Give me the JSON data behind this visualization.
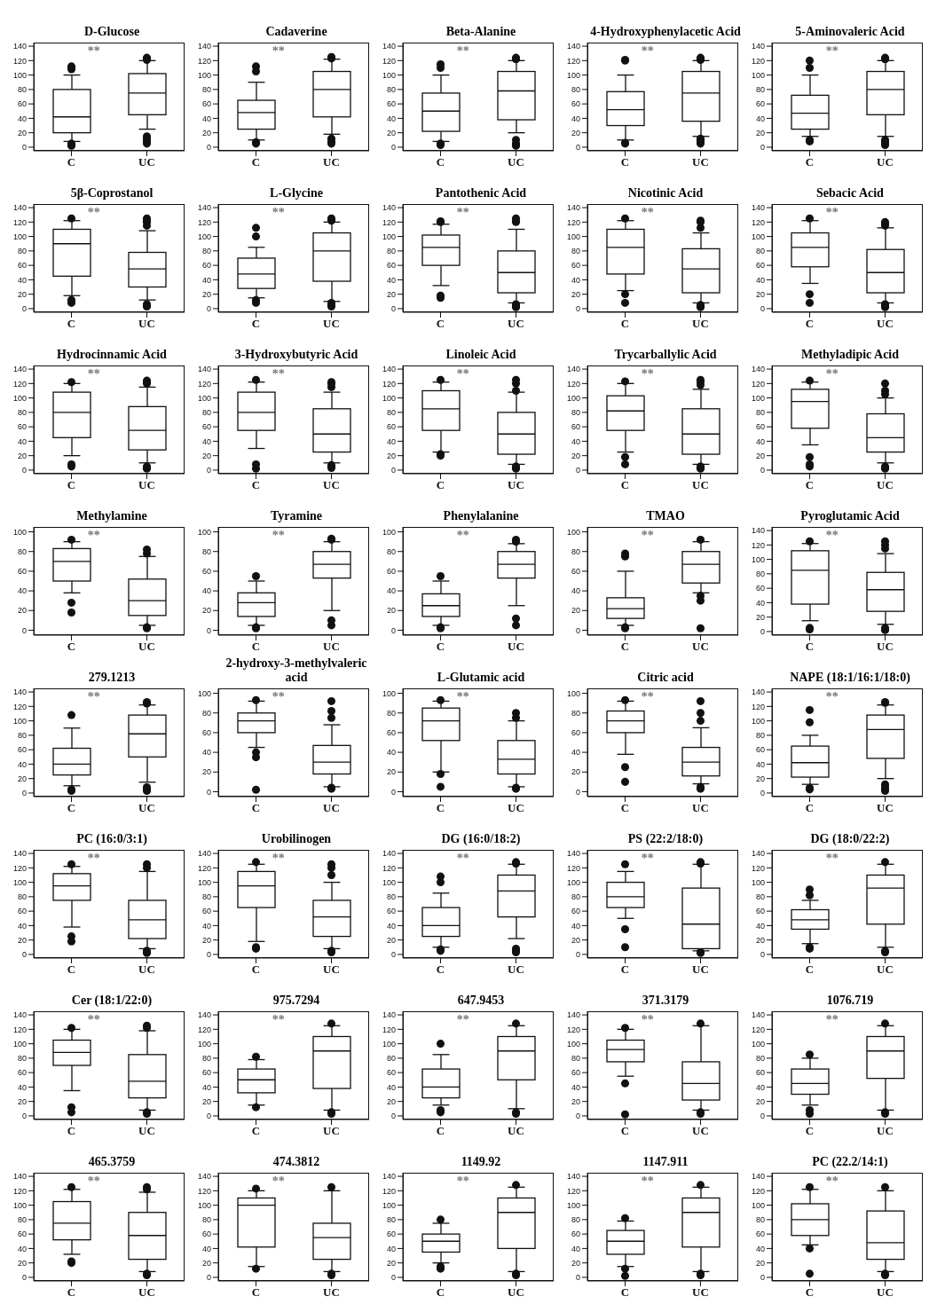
{
  "chart_data": [
    {
      "type": "box",
      "title": "D-Glucose",
      "categories": [
        "C",
        "UC"
      ],
      "ylim": [
        -5,
        145
      ],
      "yticks": [
        0,
        20,
        40,
        60,
        80,
        100,
        120,
        140
      ],
      "annotations": [
        "**"
      ],
      "boxes": [
        {
          "low": 8,
          "q1": 20,
          "median": 42,
          "q3": 80,
          "high": 100,
          "outliers": [
            108,
            110,
            112,
            2,
            3,
            5
          ]
        },
        {
          "low": 25,
          "q1": 45,
          "median": 75,
          "q3": 102,
          "high": 120,
          "outliers": [
            121,
            122,
            123,
            124,
            5,
            8,
            12,
            15
          ]
        }
      ]
    },
    {
      "type": "box",
      "title": "Cadaverine",
      "categories": [
        "C",
        "UC"
      ],
      "ylim": [
        -5,
        145
      ],
      "yticks": [
        0,
        20,
        40,
        60,
        80,
        100,
        120,
        140
      ],
      "annotations": [
        "**"
      ],
      "boxes": [
        {
          "low": 10,
          "q1": 25,
          "median": 48,
          "q3": 65,
          "high": 90,
          "outliers": [
            105,
            112,
            5,
            7
          ]
        },
        {
          "low": 18,
          "q1": 42,
          "median": 80,
          "q3": 105,
          "high": 122,
          "outliers": [
            123,
            124,
            125,
            5,
            8,
            12
          ]
        }
      ]
    },
    {
      "type": "box",
      "title": "Beta-Alanine",
      "categories": [
        "C",
        "UC"
      ],
      "ylim": [
        -5,
        145
      ],
      "yticks": [
        0,
        20,
        40,
        60,
        80,
        100,
        120,
        140
      ],
      "annotations": [
        "**"
      ],
      "boxes": [
        {
          "low": 8,
          "q1": 22,
          "median": 50,
          "q3": 75,
          "high": 100,
          "outliers": [
            110,
            115,
            3,
            5
          ]
        },
        {
          "low": 20,
          "q1": 38,
          "median": 78,
          "q3": 105,
          "high": 120,
          "outliers": [
            122,
            123,
            124,
            2,
            3,
            5,
            10
          ]
        }
      ]
    },
    {
      "type": "box",
      "title": "4-Hydroxyphenylacetic Acid",
      "categories": [
        "C",
        "UC"
      ],
      "ylim": [
        -5,
        145
      ],
      "yticks": [
        0,
        20,
        40,
        60,
        80,
        100,
        120,
        140
      ],
      "annotations": [
        "**"
      ],
      "boxes": [
        {
          "low": 10,
          "q1": 30,
          "median": 52,
          "q3": 77,
          "high": 100,
          "outliers": [
            120,
            121,
            5,
            6
          ]
        },
        {
          "low": 15,
          "q1": 36,
          "median": 75,
          "q3": 105,
          "high": 120,
          "outliers": [
            121,
            122,
            124,
            5,
            8,
            10,
            12
          ]
        }
      ]
    },
    {
      "type": "box",
      "title": "5-Aminovaleric Acid",
      "categories": [
        "C",
        "UC"
      ],
      "ylim": [
        -5,
        145
      ],
      "yticks": [
        0,
        20,
        40,
        60,
        80,
        100,
        120,
        140
      ],
      "annotations": [
        "**"
      ],
      "boxes": [
        {
          "low": 15,
          "q1": 25,
          "median": 47,
          "q3": 72,
          "high": 100,
          "outliers": [
            110,
            120,
            8,
            10
          ]
        },
        {
          "low": 15,
          "q1": 45,
          "median": 80,
          "q3": 105,
          "high": 120,
          "outliers": [
            122,
            123,
            124,
            3,
            5,
            8,
            10
          ]
        }
      ]
    },
    {
      "type": "box",
      "title": "5β-Coprostanol",
      "categories": [
        "C",
        "UC"
      ],
      "ylim": [
        -5,
        145
      ],
      "yticks": [
        0,
        20,
        40,
        60,
        80,
        100,
        120,
        140
      ],
      "annotations": [
        "**"
      ],
      "boxes": [
        {
          "low": 18,
          "q1": 45,
          "median": 90,
          "q3": 110,
          "high": 122,
          "outliers": [
            125,
            8,
            12
          ]
        },
        {
          "low": 12,
          "q1": 30,
          "median": 55,
          "q3": 78,
          "high": 108,
          "outliers": [
            115,
            120,
            122,
            125,
            3,
            4,
            5,
            6
          ]
        }
      ]
    },
    {
      "type": "box",
      "title": "L-Glycine",
      "categories": [
        "C",
        "UC"
      ],
      "ylim": [
        -5,
        145
      ],
      "yticks": [
        0,
        20,
        40,
        60,
        80,
        100,
        120,
        140
      ],
      "annotations": [
        "**"
      ],
      "boxes": [
        {
          "low": 15,
          "q1": 28,
          "median": 48,
          "q3": 70,
          "high": 85,
          "outliers": [
            100,
            112,
            8,
            12
          ]
        },
        {
          "low": 10,
          "q1": 38,
          "median": 80,
          "q3": 105,
          "high": 120,
          "outliers": [
            122,
            123,
            125,
            3,
            5,
            8
          ]
        }
      ]
    },
    {
      "type": "box",
      "title": "Pantothenic Acid",
      "categories": [
        "C",
        "UC"
      ],
      "ylim": [
        -5,
        145
      ],
      "yticks": [
        0,
        20,
        40,
        60,
        80,
        100,
        120,
        140
      ],
      "annotations": [
        "**"
      ],
      "boxes": [
        {
          "low": 32,
          "q1": 60,
          "median": 85,
          "q3": 102,
          "high": 117,
          "outliers": [
            120,
            121,
            15,
            18
          ]
        },
        {
          "low": 8,
          "q1": 22,
          "median": 50,
          "q3": 80,
          "high": 110,
          "outliers": [
            120,
            122,
            125,
            2,
            3,
            5,
            6
          ]
        }
      ]
    },
    {
      "type": "box",
      "title": "Nicotinic Acid",
      "categories": [
        "C",
        "UC"
      ],
      "ylim": [
        -5,
        145
      ],
      "yticks": [
        0,
        20,
        40,
        60,
        80,
        100,
        120,
        140
      ],
      "annotations": [
        "**"
      ],
      "boxes": [
        {
          "low": 25,
          "q1": 48,
          "median": 85,
          "q3": 110,
          "high": 122,
          "outliers": [
            125,
            8,
            20
          ]
        },
        {
          "low": 8,
          "q1": 22,
          "median": 55,
          "q3": 83,
          "high": 105,
          "outliers": [
            112,
            120,
            122,
            2,
            3,
            5
          ]
        }
      ]
    },
    {
      "type": "box",
      "title": "Sebacic Acid",
      "categories": [
        "C",
        "UC"
      ],
      "ylim": [
        -5,
        145
      ],
      "yticks": [
        0,
        20,
        40,
        60,
        80,
        100,
        120,
        140
      ],
      "annotations": [
        "**"
      ],
      "boxes": [
        {
          "low": 35,
          "q1": 58,
          "median": 85,
          "q3": 105,
          "high": 122,
          "outliers": [
            125,
            8,
            20
          ]
        },
        {
          "low": 8,
          "q1": 22,
          "median": 50,
          "q3": 82,
          "high": 112,
          "outliers": [
            115,
            118,
            120,
            2,
            3,
            5,
            6
          ]
        }
      ]
    },
    {
      "type": "box",
      "title": "Hydrocinnamic Acid",
      "categories": [
        "C",
        "UC"
      ],
      "ylim": [
        -5,
        145
      ],
      "yticks": [
        0,
        20,
        40,
        60,
        80,
        100,
        120,
        140
      ],
      "annotations": [
        "**"
      ],
      "boxes": [
        {
          "low": 20,
          "q1": 45,
          "median": 80,
          "q3": 108,
          "high": 120,
          "outliers": [
            122,
            5,
            8
          ]
        },
        {
          "low": 10,
          "q1": 28,
          "median": 55,
          "q3": 88,
          "high": 115,
          "outliers": [
            120,
            122,
            124,
            2,
            3,
            4,
            5
          ]
        }
      ]
    },
    {
      "type": "box",
      "title": "3-Hydroxybutyric Acid",
      "categories": [
        "C",
        "UC"
      ],
      "ylim": [
        -5,
        145
      ],
      "yticks": [
        0,
        20,
        40,
        60,
        80,
        100,
        120,
        140
      ],
      "annotations": [
        "**"
      ],
      "boxes": [
        {
          "low": 30,
          "q1": 55,
          "median": 80,
          "q3": 108,
          "high": 122,
          "outliers": [
            125,
            2,
            8
          ]
        },
        {
          "low": 10,
          "q1": 25,
          "median": 50,
          "q3": 85,
          "high": 108,
          "outliers": [
            115,
            120,
            122,
            3,
            5,
            7
          ]
        }
      ]
    },
    {
      "type": "box",
      "title": "Linoleic Acid",
      "categories": [
        "C",
        "UC"
      ],
      "ylim": [
        -5,
        145
      ],
      "yticks": [
        0,
        20,
        40,
        60,
        80,
        100,
        120,
        140
      ],
      "annotations": [
        "**"
      ],
      "boxes": [
        {
          "low": 25,
          "q1": 55,
          "median": 85,
          "q3": 110,
          "high": 122,
          "outliers": [
            125,
            20,
            22
          ]
        },
        {
          "low": 8,
          "q1": 22,
          "median": 50,
          "q3": 80,
          "high": 108,
          "outliers": [
            110,
            120,
            125,
            2,
            3,
            5
          ]
        }
      ]
    },
    {
      "type": "box",
      "title": "Trycarballylic Acid",
      "categories": [
        "C",
        "UC"
      ],
      "ylim": [
        -5,
        145
      ],
      "yticks": [
        0,
        20,
        40,
        60,
        80,
        100,
        120,
        140
      ],
      "annotations": [
        "**"
      ],
      "boxes": [
        {
          "low": 25,
          "q1": 55,
          "median": 82,
          "q3": 103,
          "high": 120,
          "outliers": [
            123,
            8,
            18
          ]
        },
        {
          "low": 8,
          "q1": 22,
          "median": 50,
          "q3": 85,
          "high": 112,
          "outliers": [
            118,
            122,
            125,
            2,
            3,
            5
          ]
        }
      ]
    },
    {
      "type": "box",
      "title": "Methyladipic Acid",
      "categories": [
        "C",
        "UC"
      ],
      "ylim": [
        -5,
        145
      ],
      "yticks": [
        0,
        20,
        40,
        60,
        80,
        100,
        120,
        140
      ],
      "annotations": [
        "**"
      ],
      "boxes": [
        {
          "low": 35,
          "q1": 58,
          "median": 95,
          "q3": 112,
          "high": 122,
          "outliers": [
            124,
            5,
            8,
            18
          ]
        },
        {
          "low": 10,
          "q1": 25,
          "median": 45,
          "q3": 78,
          "high": 100,
          "outliers": [
            105,
            110,
            120,
            2,
            3,
            5
          ]
        }
      ]
    },
    {
      "type": "box",
      "title": "Methylamine",
      "categories": [
        "C",
        "UC"
      ],
      "ylim": [
        -5,
        105
      ],
      "yticks": [
        0,
        20,
        40,
        60,
        80,
        100
      ],
      "annotations": [
        "**"
      ],
      "boxes": [
        {
          "low": 38,
          "q1": 50,
          "median": 70,
          "q3": 83,
          "high": 90,
          "outliers": [
            92,
            18,
            28
          ]
        },
        {
          "low": 5,
          "q1": 15,
          "median": 30,
          "q3": 52,
          "high": 75,
          "outliers": [
            78,
            82,
            2,
            3
          ]
        }
      ]
    },
    {
      "type": "box",
      "title": "Tyramine",
      "categories": [
        "C",
        "UC"
      ],
      "ylim": [
        -5,
        105
      ],
      "yticks": [
        0,
        20,
        40,
        60,
        80,
        100
      ],
      "annotations": [
        "**"
      ],
      "boxes": [
        {
          "low": 5,
          "q1": 14,
          "median": 28,
          "q3": 38,
          "high": 50,
          "outliers": [
            55,
            2,
            3
          ]
        },
        {
          "low": 20,
          "q1": 53,
          "median": 67,
          "q3": 80,
          "high": 90,
          "outliers": [
            92,
            93,
            5,
            10
          ]
        }
      ]
    },
    {
      "type": "box",
      "title": "Phenylalanine",
      "categories": [
        "C",
        "UC"
      ],
      "ylim": [
        -5,
        105
      ],
      "yticks": [
        0,
        20,
        40,
        60,
        80,
        100
      ],
      "annotations": [
        "**"
      ],
      "boxes": [
        {
          "low": 5,
          "q1": 14,
          "median": 25,
          "q3": 37,
          "high": 50,
          "outliers": [
            55,
            2,
            3
          ]
        },
        {
          "low": 25,
          "q1": 53,
          "median": 67,
          "q3": 80,
          "high": 88,
          "outliers": [
            90,
            92,
            5,
            12
          ]
        }
      ]
    },
    {
      "type": "box",
      "title": "TMAO",
      "categories": [
        "C",
        "UC"
      ],
      "ylim": [
        -5,
        105
      ],
      "yticks": [
        0,
        20,
        40,
        60,
        80,
        100
      ],
      "annotations": [
        "**"
      ],
      "boxes": [
        {
          "low": 5,
          "q1": 12,
          "median": 22,
          "q3": 33,
          "high": 60,
          "outliers": [
            75,
            78,
            2,
            3
          ]
        },
        {
          "low": 38,
          "q1": 48,
          "median": 67,
          "q3": 80,
          "high": 90,
          "outliers": [
            92,
            2,
            30,
            35
          ]
        }
      ]
    },
    {
      "type": "box",
      "title": "Pyroglutamic Acid",
      "categories": [
        "C",
        "UC"
      ],
      "ylim": [
        -5,
        145
      ],
      "yticks": [
        0,
        20,
        40,
        60,
        80,
        100,
        120,
        140
      ],
      "annotations": [
        "**"
      ],
      "boxes": [
        {
          "low": 15,
          "q1": 38,
          "median": 85,
          "q3": 112,
          "high": 122,
          "outliers": [
            125,
            3,
            5
          ]
        },
        {
          "low": 10,
          "q1": 28,
          "median": 58,
          "q3": 82,
          "high": 108,
          "outliers": [
            115,
            120,
            125,
            2,
            3,
            5
          ]
        }
      ]
    },
    {
      "type": "box",
      "title": "279.1213",
      "categories": [
        "C",
        "UC"
      ],
      "ylim": [
        -5,
        145
      ],
      "yticks": [
        0,
        20,
        40,
        60,
        80,
        100,
        120,
        140
      ],
      "annotations": [
        "**"
      ],
      "boxes": [
        {
          "low": 10,
          "q1": 25,
          "median": 40,
          "q3": 62,
          "high": 90,
          "outliers": [
            108,
            3,
            5
          ]
        },
        {
          "low": 15,
          "q1": 50,
          "median": 82,
          "q3": 108,
          "high": 122,
          "outliers": [
            124,
            125,
            126,
            3,
            5,
            8
          ]
        }
      ]
    },
    {
      "type": "box",
      "title": "2-hydroxy-3-methylvaleric acid",
      "categories": [
        "C",
        "UC"
      ],
      "ylim": [
        -5,
        105
      ],
      "yticks": [
        0,
        20,
        40,
        60,
        80,
        100
      ],
      "annotations": [
        "**"
      ],
      "boxes": [
        {
          "low": 45,
          "q1": 60,
          "median": 72,
          "q3": 80,
          "high": 92,
          "outliers": [
            93,
            2,
            35,
            40
          ]
        },
        {
          "low": 5,
          "q1": 18,
          "median": 30,
          "q3": 47,
          "high": 68,
          "outliers": [
            75,
            82,
            92,
            3,
            4
          ]
        }
      ]
    },
    {
      "type": "box",
      "title": "L-Glutamic acid",
      "categories": [
        "C",
        "UC"
      ],
      "ylim": [
        -5,
        105
      ],
      "yticks": [
        0,
        20,
        40,
        60,
        80,
        100
      ],
      "annotations": [
        "**"
      ],
      "boxes": [
        {
          "low": 20,
          "q1": 52,
          "median": 72,
          "q3": 85,
          "high": 92,
          "outliers": [
            93,
            5,
            18
          ]
        },
        {
          "low": 5,
          "q1": 18,
          "median": 33,
          "q3": 52,
          "high": 72,
          "outliers": [
            75,
            80,
            3,
            4
          ]
        }
      ]
    },
    {
      "type": "box",
      "title": "Citric acid",
      "categories": [
        "C",
        "UC"
      ],
      "ylim": [
        -5,
        105
      ],
      "yticks": [
        0,
        20,
        40,
        60,
        80,
        100
      ],
      "annotations": [
        "**"
      ],
      "boxes": [
        {
          "low": 38,
          "q1": 60,
          "median": 72,
          "q3": 82,
          "high": 92,
          "outliers": [
            93,
            10,
            25
          ]
        },
        {
          "low": 8,
          "q1": 16,
          "median": 30,
          "q3": 45,
          "high": 65,
          "outliers": [
            72,
            80,
            92,
            3,
            5
          ]
        }
      ]
    },
    {
      "type": "box",
      "title": "NAPE (18:1/16:1/18:0)",
      "categories": [
        "C",
        "UC"
      ],
      "ylim": [
        -5,
        145
      ],
      "yticks": [
        0,
        20,
        40,
        60,
        80,
        100,
        120,
        140
      ],
      "annotations": [
        "**"
      ],
      "boxes": [
        {
          "low": 12,
          "q1": 22,
          "median": 42,
          "q3": 65,
          "high": 80,
          "outliers": [
            98,
            115,
            5,
            7
          ]
        },
        {
          "low": 20,
          "q1": 48,
          "median": 88,
          "q3": 108,
          "high": 122,
          "outliers": [
            125,
            126,
            3,
            5,
            8,
            12
          ]
        }
      ]
    },
    {
      "type": "box",
      "title": "PC (16:0/3:1)",
      "categories": [
        "C",
        "UC"
      ],
      "ylim": [
        -5,
        145
      ],
      "yticks": [
        0,
        20,
        40,
        60,
        80,
        100,
        120,
        140
      ],
      "annotations": [
        "**"
      ],
      "boxes": [
        {
          "low": 38,
          "q1": 75,
          "median": 95,
          "q3": 112,
          "high": 122,
          "outliers": [
            125,
            18,
            25
          ]
        },
        {
          "low": 8,
          "q1": 22,
          "median": 48,
          "q3": 75,
          "high": 115,
          "outliers": [
            120,
            125,
            2,
            3,
            5
          ]
        }
      ]
    },
    {
      "type": "box",
      "title": "Urobilinogen",
      "categories": [
        "C",
        "UC"
      ],
      "ylim": [
        -5,
        145
      ],
      "yticks": [
        0,
        20,
        40,
        60,
        80,
        100,
        120,
        140
      ],
      "annotations": [
        "**"
      ],
      "boxes": [
        {
          "low": 18,
          "q1": 65,
          "median": 95,
          "q3": 115,
          "high": 125,
          "outliers": [
            128,
            8,
            10
          ]
        },
        {
          "low": 8,
          "q1": 25,
          "median": 52,
          "q3": 75,
          "high": 100,
          "outliers": [
            110,
            120,
            125,
            3,
            5
          ]
        }
      ]
    },
    {
      "type": "box",
      "title": "DG (16:0/18:2)",
      "categories": [
        "C",
        "UC"
      ],
      "ylim": [
        -5,
        145
      ],
      "yticks": [
        0,
        20,
        40,
        60,
        80,
        100,
        120,
        140
      ],
      "annotations": [
        "**"
      ],
      "boxes": [
        {
          "low": 10,
          "q1": 25,
          "median": 40,
          "q3": 65,
          "high": 85,
          "outliers": [
            100,
            108,
            5,
            7
          ]
        },
        {
          "low": 22,
          "q1": 52,
          "median": 88,
          "q3": 110,
          "high": 125,
          "outliers": [
            126,
            128,
            3,
            5,
            8
          ]
        }
      ]
    },
    {
      "type": "box",
      "title": "PS (22:2/18:0)",
      "categories": [
        "C",
        "UC"
      ],
      "ylim": [
        -5,
        145
      ],
      "yticks": [
        0,
        20,
        40,
        60,
        80,
        100,
        120,
        140
      ],
      "annotations": [
        "**"
      ],
      "boxes": [
        {
          "low": 50,
          "q1": 65,
          "median": 80,
          "q3": 100,
          "high": 115,
          "outliers": [
            125,
            10,
            35
          ]
        },
        {
          "low": 5,
          "q1": 8,
          "median": 42,
          "q3": 92,
          "high": 125,
          "outliers": [
            126,
            128,
            2,
            3
          ]
        }
      ]
    },
    {
      "type": "box",
      "title": "DG (18:0/22:2)",
      "categories": [
        "C",
        "UC"
      ],
      "ylim": [
        -5,
        145
      ],
      "yticks": [
        0,
        20,
        40,
        60,
        80,
        100,
        120,
        140
      ],
      "annotations": [
        "**"
      ],
      "boxes": [
        {
          "low": 15,
          "q1": 35,
          "median": 48,
          "q3": 62,
          "high": 75,
          "outliers": [
            82,
            90,
            8,
            10
          ]
        },
        {
          "low": 10,
          "q1": 42,
          "median": 92,
          "q3": 110,
          "high": 125,
          "outliers": [
            128,
            3,
            5
          ]
        }
      ]
    },
    {
      "type": "box",
      "title": "Cer (18:1/22:0)",
      "categories": [
        "C",
        "UC"
      ],
      "ylim": [
        -5,
        145
      ],
      "yticks": [
        0,
        20,
        40,
        60,
        80,
        100,
        120,
        140
      ],
      "annotations": [
        "**"
      ],
      "boxes": [
        {
          "low": 35,
          "q1": 70,
          "median": 88,
          "q3": 105,
          "high": 120,
          "outliers": [
            122,
            5,
            12
          ]
        },
        {
          "low": 8,
          "q1": 25,
          "median": 48,
          "q3": 85,
          "high": 118,
          "outliers": [
            122,
            125,
            3,
            5
          ]
        }
      ]
    },
    {
      "type": "box",
      "title": "975.7294",
      "categories": [
        "C",
        "UC"
      ],
      "ylim": [
        -5,
        145
      ],
      "yticks": [
        0,
        20,
        40,
        60,
        80,
        100,
        120,
        140
      ],
      "annotations": [
        "**"
      ],
      "boxes": [
        {
          "low": 15,
          "q1": 32,
          "median": 50,
          "q3": 65,
          "high": 78,
          "outliers": [
            82,
            12
          ]
        },
        {
          "low": 8,
          "q1": 38,
          "median": 90,
          "q3": 110,
          "high": 125,
          "outliers": [
            128,
            3,
            5
          ]
        }
      ]
    },
    {
      "type": "box",
      "title": "647.9453",
      "categories": [
        "C",
        "UC"
      ],
      "ylim": [
        -5,
        145
      ],
      "yticks": [
        0,
        20,
        40,
        60,
        80,
        100,
        120,
        140
      ],
      "annotations": [
        "**"
      ],
      "boxes": [
        {
          "low": 15,
          "q1": 25,
          "median": 40,
          "q3": 65,
          "high": 85,
          "outliers": [
            100,
            5,
            8
          ]
        },
        {
          "low": 10,
          "q1": 50,
          "median": 90,
          "q3": 110,
          "high": 125,
          "outliers": [
            128,
            3,
            5
          ]
        }
      ]
    },
    {
      "type": "box",
      "title": "371.3179",
      "categories": [
        "C",
        "UC"
      ],
      "ylim": [
        -5,
        145
      ],
      "yticks": [
        0,
        20,
        40,
        60,
        80,
        100,
        120,
        140
      ],
      "annotations": [
        "**"
      ],
      "boxes": [
        {
          "low": 55,
          "q1": 75,
          "median": 92,
          "q3": 105,
          "high": 120,
          "outliers": [
            122,
            2,
            45
          ]
        },
        {
          "low": 8,
          "q1": 22,
          "median": 45,
          "q3": 75,
          "high": 125,
          "outliers": [
            128,
            3,
            5
          ]
        }
      ]
    },
    {
      "type": "box",
      "title": "1076.719",
      "categories": [
        "C",
        "UC"
      ],
      "ylim": [
        -5,
        145
      ],
      "yticks": [
        0,
        20,
        40,
        60,
        80,
        100,
        120,
        140
      ],
      "annotations": [
        "**"
      ],
      "boxes": [
        {
          "low": 15,
          "q1": 30,
          "median": 45,
          "q3": 65,
          "high": 80,
          "outliers": [
            85,
            3,
            8
          ]
        },
        {
          "low": 8,
          "q1": 52,
          "median": 90,
          "q3": 110,
          "high": 125,
          "outliers": [
            128,
            3,
            5
          ]
        }
      ]
    },
    {
      "type": "box",
      "title": "465.3759",
      "categories": [
        "C",
        "UC"
      ],
      "ylim": [
        -5,
        145
      ],
      "yticks": [
        0,
        20,
        40,
        60,
        80,
        100,
        120,
        140
      ],
      "annotations": [
        "**"
      ],
      "boxes": [
        {
          "low": 32,
          "q1": 52,
          "median": 75,
          "q3": 105,
          "high": 122,
          "outliers": [
            125,
            20,
            22
          ]
        },
        {
          "low": 8,
          "q1": 25,
          "median": 58,
          "q3": 90,
          "high": 118,
          "outliers": [
            122,
            125,
            3,
            5
          ]
        }
      ]
    },
    {
      "type": "box",
      "title": "474.3812",
      "categories": [
        "C",
        "UC"
      ],
      "ylim": [
        -5,
        145
      ],
      "yticks": [
        0,
        20,
        40,
        60,
        80,
        100,
        120,
        140
      ],
      "annotations": [
        "**"
      ],
      "boxes": [
        {
          "low": 15,
          "q1": 42,
          "median": 100,
          "q3": 110,
          "high": 120,
          "outliers": [
            123,
            12
          ]
        },
        {
          "low": 8,
          "q1": 25,
          "median": 55,
          "q3": 75,
          "high": 120,
          "outliers": [
            125,
            3,
            5
          ]
        }
      ]
    },
    {
      "type": "box",
      "title": "1149.92",
      "categories": [
        "C",
        "UC"
      ],
      "ylim": [
        -5,
        145
      ],
      "yticks": [
        0,
        20,
        40,
        60,
        80,
        100,
        120,
        140
      ],
      "annotations": [
        "**"
      ],
      "boxes": [
        {
          "low": 20,
          "q1": 35,
          "median": 50,
          "q3": 60,
          "high": 75,
          "outliers": [
            80,
            12,
            15
          ]
        },
        {
          "low": 8,
          "q1": 40,
          "median": 90,
          "q3": 110,
          "high": 125,
          "outliers": [
            128,
            3,
            5
          ]
        }
      ]
    },
    {
      "type": "box",
      "title": "1147.911",
      "categories": [
        "C",
        "UC"
      ],
      "ylim": [
        -5,
        145
      ],
      "yticks": [
        0,
        20,
        40,
        60,
        80,
        100,
        120,
        140
      ],
      "annotations": [
        "**"
      ],
      "boxes": [
        {
          "low": 15,
          "q1": 32,
          "median": 50,
          "q3": 65,
          "high": 78,
          "outliers": [
            82,
            2,
            12
          ]
        },
        {
          "low": 8,
          "q1": 42,
          "median": 90,
          "q3": 110,
          "high": 125,
          "outliers": [
            128,
            3,
            5
          ]
        }
      ]
    },
    {
      "type": "box",
      "title": "PC (22.2/14:1)",
      "categories": [
        "C",
        "UC"
      ],
      "ylim": [
        -5,
        145
      ],
      "yticks": [
        0,
        20,
        40,
        60,
        80,
        100,
        120,
        140
      ],
      "annotations": [
        "**"
      ],
      "boxes": [
        {
          "low": 45,
          "q1": 58,
          "median": 80,
          "q3": 102,
          "high": 122,
          "outliers": [
            125,
            5,
            40
          ]
        },
        {
          "low": 8,
          "q1": 25,
          "median": 48,
          "q3": 92,
          "high": 120,
          "outliers": [
            125,
            3,
            5
          ]
        }
      ]
    }
  ]
}
